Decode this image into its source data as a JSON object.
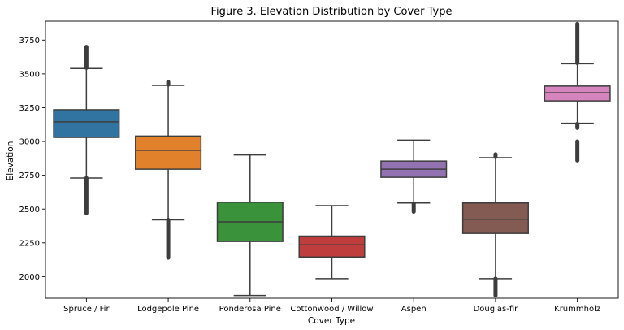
{
  "chart_data": {
    "type": "box",
    "title": "Figure 3. Elevation Distribution by Cover Type",
    "xlabel": "Cover Type",
    "ylabel": "Elevation",
    "ylim": [
      1840,
      3890
    ],
    "yticks": [
      2000,
      2250,
      2500,
      2750,
      3000,
      3250,
      3500,
      3750
    ],
    "grid": false,
    "categories": [
      "Spruce / Fir",
      "Lodgepole Pine",
      "Ponderosa Pine",
      "Cottonwood / Willow",
      "Aspen",
      "Douglas-fir",
      "Krummholz"
    ],
    "boxes": [
      {
        "category": "Spruce / Fir",
        "color": "#3274a1",
        "whisker_low": 2730,
        "q1": 3030,
        "median": 3145,
        "q3": 3235,
        "whisker_high": 3540,
        "outliers_low": [
          2470,
          2730
        ],
        "outliers_high": [
          3545,
          3700
        ]
      },
      {
        "category": "Lodgepole Pine",
        "color": "#e1812c",
        "whisker_low": 2420,
        "q1": 2795,
        "median": 2935,
        "q3": 3040,
        "whisker_high": 3415,
        "outliers_low": [
          2140,
          2420
        ],
        "outliers_high": [
          3420,
          3440
        ]
      },
      {
        "category": "Ponderosa Pine",
        "color": "#3a923a",
        "whisker_low": 1860,
        "q1": 2260,
        "median": 2405,
        "q3": 2550,
        "whisker_high": 2900,
        "outliers_low": [],
        "outliers_high": []
      },
      {
        "category": "Cottonwood / Willow",
        "color": "#c03d3e",
        "whisker_low": 1985,
        "q1": 2145,
        "median": 2235,
        "q3": 2300,
        "whisker_high": 2525,
        "outliers_low": [],
        "outliers_high": []
      },
      {
        "category": "Aspen",
        "color": "#9372b2",
        "whisker_low": 2545,
        "q1": 2735,
        "median": 2795,
        "q3": 2855,
        "whisker_high": 3010,
        "outliers_low": [
          2480,
          2540
        ],
        "outliers_high": []
      },
      {
        "category": "Douglas-fir",
        "color": "#845b53",
        "whisker_low": 1985,
        "q1": 2320,
        "median": 2425,
        "q3": 2545,
        "whisker_high": 2880,
        "outliers_low": [
          1860,
          1985
        ],
        "outliers_high": [
          2885,
          2905
        ]
      },
      {
        "category": "Krummholz",
        "color": "#d684bd",
        "whisker_low": 3135,
        "q1": 3300,
        "median": 3360,
        "q3": 3410,
        "whisker_high": 3575,
        "outliers_low": [
          2860,
          3000,
          3100,
          3130
        ],
        "outliers_high": [
          3580,
          3870
        ]
      }
    ]
  }
}
